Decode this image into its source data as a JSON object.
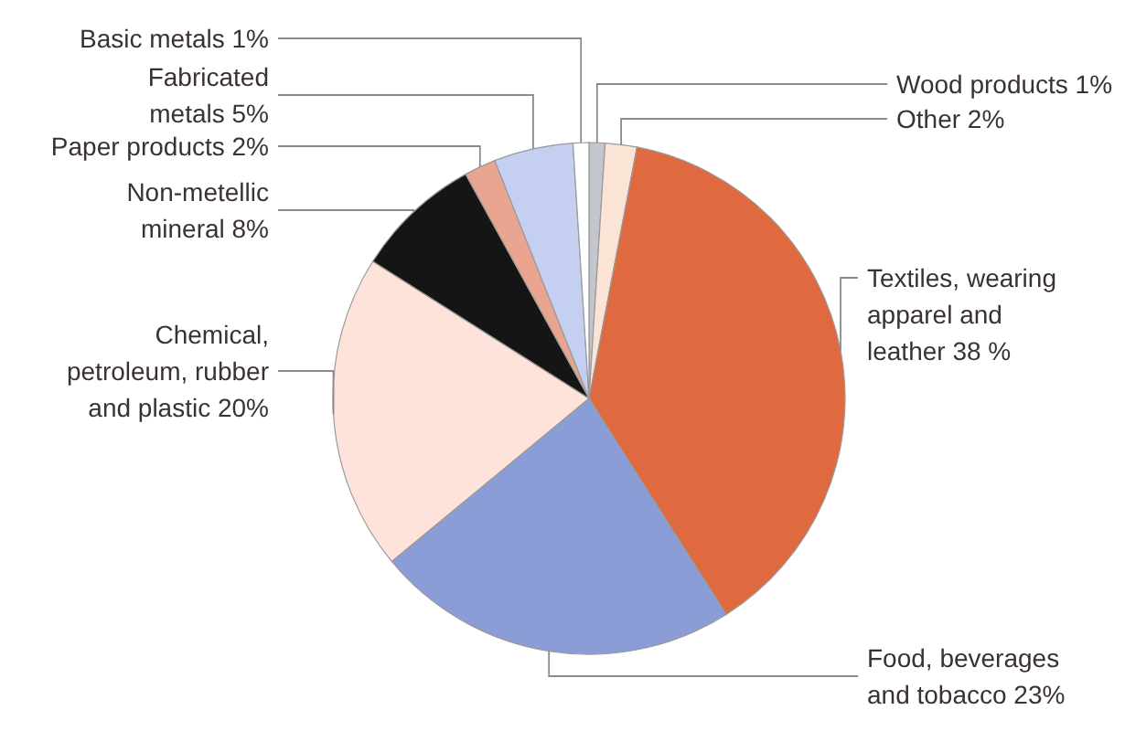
{
  "chart_data": {
    "type": "pie",
    "categories": [
      "Wood products",
      "Other",
      "Textiles, wearing apparel and leather",
      "Food, beverages and tobacco",
      "Chemical, petroleum, rubber and plastic",
      "Non-metellic mineral",
      "Paper products",
      "Fabricated metals",
      "Basic metals"
    ],
    "values": [
      1,
      2,
      38,
      23,
      20,
      8,
      2,
      5,
      1
    ],
    "value_labels": [
      "1%",
      "2%",
      "38 %",
      "23%",
      "20%",
      "8%",
      "2%",
      "5%",
      "1%"
    ],
    "colors": [
      "#c3c6cc",
      "#fbe3d6",
      "#e06a3f",
      "#8b9dd6",
      "#fde3da",
      "#151515",
      "#e9a58f",
      "#c5cff2",
      "#ffffff"
    ]
  }
}
